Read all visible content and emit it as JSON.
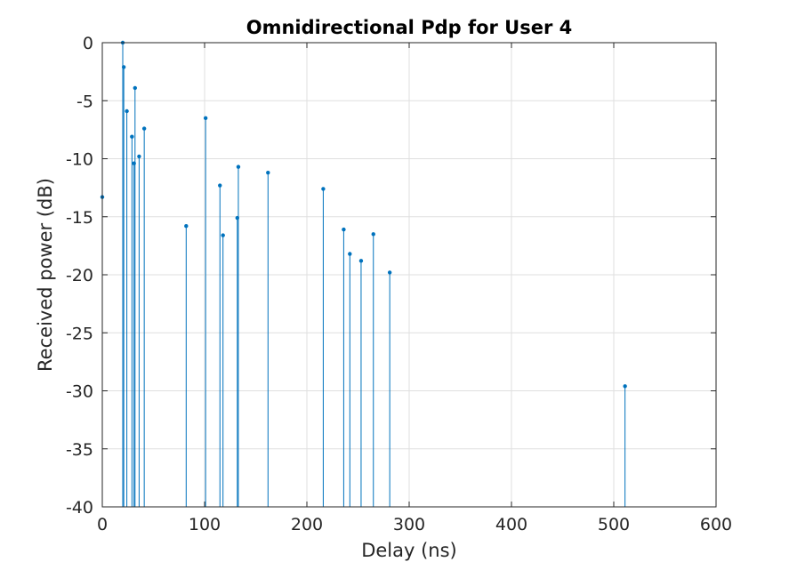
{
  "chart_data": {
    "type": "stem",
    "title": "Omnidirectional Pdp for User 4",
    "xlabel": "Delay (ns)",
    "ylabel": "Received power (dB)",
    "xlim": [
      0,
      600
    ],
    "ylim": [
      -40,
      0
    ],
    "xticks": [
      0,
      100,
      200,
      300,
      400,
      500,
      600
    ],
    "yticks": [
      0,
      -5,
      -10,
      -15,
      -20,
      -25,
      -30,
      -35,
      -40
    ],
    "xtick_labels": [
      "0",
      "100",
      "200",
      "300",
      "400",
      "500",
      "600"
    ],
    "ytick_labels": [
      "0",
      "-5",
      "-10",
      "-15",
      "-20",
      "-25",
      "-30",
      "-35",
      "-40"
    ],
    "grid": true,
    "baseline": -40,
    "color": "#0072bd",
    "x": [
      0,
      20,
      21,
      24,
      29,
      31,
      32,
      36,
      41,
      82,
      101,
      115,
      118,
      132,
      133,
      162,
      216,
      236,
      242,
      253,
      265,
      281,
      511
    ],
    "y": [
      -13.3,
      0,
      -2.1,
      -5.9,
      -8.1,
      -10.4,
      -3.9,
      -9.8,
      -7.4,
      -15.8,
      -6.5,
      -12.3,
      -16.6,
      -15.1,
      -10.7,
      -11.2,
      -12.6,
      -16.1,
      -18.2,
      -18.8,
      -16.5,
      -19.8,
      -29.6
    ]
  }
}
